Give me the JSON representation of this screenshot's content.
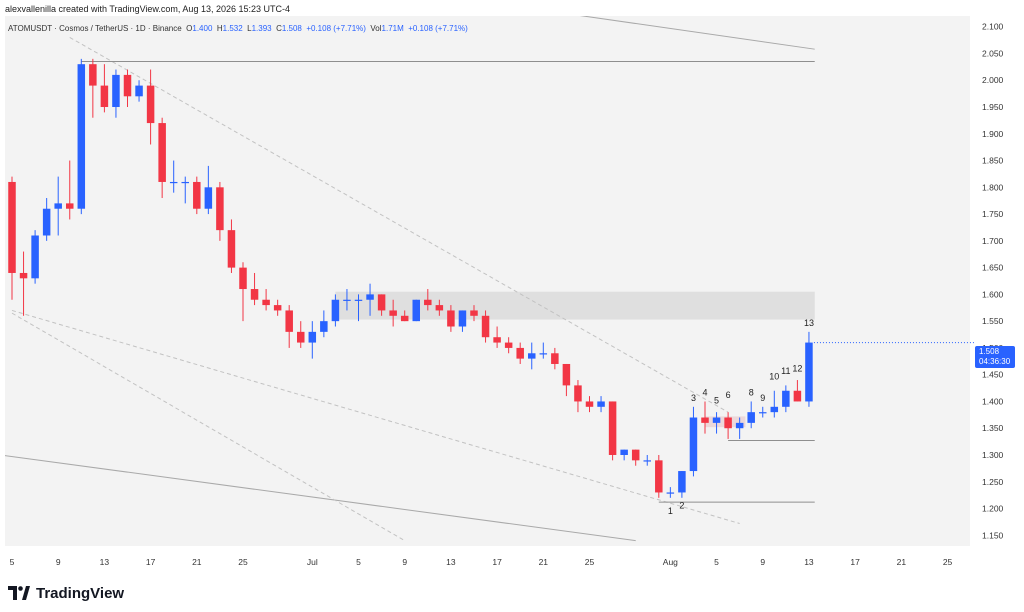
{
  "header": {
    "attribution": "alexvallenilla created with TradingView.com, Aug 13, 2026 15:23 UTC-4"
  },
  "symbol_bar": {
    "pair": "ATOMUSDT · Cosmos / TetherUS · 1D · Binance",
    "open_label": "O",
    "open": "1.400",
    "high_label": "H",
    "high": "1.532",
    "low_label": "L",
    "low": "1.393",
    "close_label": "C",
    "close": "1.508",
    "change": "+0.108 (+7.71%)",
    "vol_label": "Vol",
    "vol": "1.71M",
    "vol_change": "+0.108 (+7.71%)"
  },
  "price_tag": {
    "price": "1.508",
    "countdown": "04:36:30"
  },
  "footer": {
    "brand": "TradingView"
  },
  "colors": {
    "up": "#2962ff",
    "down": "#f23645",
    "grid_bg": "#f3f3f3",
    "zone": "#dadada",
    "trendline": "#b5b5b5"
  },
  "chart_data": {
    "type": "candlestick",
    "title": "",
    "xlabel": "",
    "ylabel": "",
    "ylim": [
      1.13,
      2.12
    ],
    "y_ticks": [
      "2.100",
      "2.050",
      "2.000",
      "1.950",
      "1.900",
      "1.850",
      "1.800",
      "1.750",
      "1.700",
      "1.650",
      "1.600",
      "1.550",
      "1.500",
      "1.450",
      "1.400",
      "1.350",
      "1.300",
      "1.250",
      "1.200",
      "1.150"
    ],
    "x_ticks": [
      {
        "label": "5",
        "day": 0
      },
      {
        "label": "9",
        "day": 4
      },
      {
        "label": "13",
        "day": 8
      },
      {
        "label": "17",
        "day": 12
      },
      {
        "label": "21",
        "day": 16
      },
      {
        "label": "25",
        "day": 20
      },
      {
        "label": "Jul",
        "day": 26
      },
      {
        "label": "5",
        "day": 30
      },
      {
        "label": "9",
        "day": 34
      },
      {
        "label": "13",
        "day": 38
      },
      {
        "label": "17",
        "day": 42
      },
      {
        "label": "21",
        "day": 46
      },
      {
        "label": "25",
        "day": 50
      },
      {
        "label": "Aug",
        "day": 57
      },
      {
        "label": "5",
        "day": 61
      },
      {
        "label": "9",
        "day": 65
      },
      {
        "label": "13",
        "day": 69
      },
      {
        "label": "17",
        "day": 73
      },
      {
        "label": "21",
        "day": 77
      },
      {
        "label": "25",
        "day": 81
      }
    ],
    "candles": [
      {
        "d": "Jun 5",
        "o": 1.81,
        "h": 1.82,
        "l": 1.59,
        "c": 1.64
      },
      {
        "d": "Jun 6",
        "o": 1.64,
        "h": 1.68,
        "l": 1.56,
        "c": 1.63
      },
      {
        "d": "Jun 7",
        "o": 1.63,
        "h": 1.72,
        "l": 1.62,
        "c": 1.71
      },
      {
        "d": "Jun 8",
        "o": 1.71,
        "h": 1.78,
        "l": 1.7,
        "c": 1.76
      },
      {
        "d": "Jun 9",
        "o": 1.76,
        "h": 1.82,
        "l": 1.71,
        "c": 1.77
      },
      {
        "d": "Jun 10",
        "o": 1.77,
        "h": 1.85,
        "l": 1.74,
        "c": 1.76
      },
      {
        "d": "Jun 11",
        "o": 1.76,
        "h": 2.04,
        "l": 1.75,
        "c": 2.03
      },
      {
        "d": "Jun 12",
        "o": 2.03,
        "h": 2.04,
        "l": 1.93,
        "c": 1.99
      },
      {
        "d": "Jun 13",
        "o": 1.99,
        "h": 2.03,
        "l": 1.94,
        "c": 1.95
      },
      {
        "d": "Jun 14",
        "o": 1.95,
        "h": 2.02,
        "l": 1.93,
        "c": 2.01
      },
      {
        "d": "Jun 15",
        "o": 2.01,
        "h": 2.02,
        "l": 1.95,
        "c": 1.97
      },
      {
        "d": "Jun 16",
        "o": 1.97,
        "h": 2.0,
        "l": 1.96,
        "c": 1.99
      },
      {
        "d": "Jun 17",
        "o": 1.99,
        "h": 2.02,
        "l": 1.88,
        "c": 1.92
      },
      {
        "d": "Jun 18",
        "o": 1.92,
        "h": 1.93,
        "l": 1.78,
        "c": 1.81
      },
      {
        "d": "Jun 19",
        "o": 1.81,
        "h": 1.85,
        "l": 1.79,
        "c": 1.81
      },
      {
        "d": "Jun 20",
        "o": 1.81,
        "h": 1.82,
        "l": 1.77,
        "c": 1.81
      },
      {
        "d": "Jun 21",
        "o": 1.81,
        "h": 1.82,
        "l": 1.75,
        "c": 1.76
      },
      {
        "d": "Jun 22",
        "o": 1.76,
        "h": 1.84,
        "l": 1.75,
        "c": 1.8
      },
      {
        "d": "Jun 23",
        "o": 1.8,
        "h": 1.81,
        "l": 1.7,
        "c": 1.72
      },
      {
        "d": "Jun 24",
        "o": 1.72,
        "h": 1.74,
        "l": 1.64,
        "c": 1.65
      },
      {
        "d": "Jun 25",
        "o": 1.65,
        "h": 1.66,
        "l": 1.55,
        "c": 1.61
      },
      {
        "d": "Jun 26",
        "o": 1.61,
        "h": 1.64,
        "l": 1.58,
        "c": 1.59
      },
      {
        "d": "Jun 27",
        "o": 1.59,
        "h": 1.61,
        "l": 1.57,
        "c": 1.58
      },
      {
        "d": "Jun 28",
        "o": 1.58,
        "h": 1.59,
        "l": 1.56,
        "c": 1.57
      },
      {
        "d": "Jun 29",
        "o": 1.57,
        "h": 1.58,
        "l": 1.5,
        "c": 1.53
      },
      {
        "d": "Jun 30",
        "o": 1.53,
        "h": 1.55,
        "l": 1.5,
        "c": 1.51
      },
      {
        "d": "Jul 1",
        "o": 1.51,
        "h": 1.55,
        "l": 1.48,
        "c": 1.53
      },
      {
        "d": "Jul 2",
        "o": 1.53,
        "h": 1.57,
        "l": 1.52,
        "c": 1.55
      },
      {
        "d": "Jul 3",
        "o": 1.55,
        "h": 1.6,
        "l": 1.54,
        "c": 1.59
      },
      {
        "d": "Jul 4",
        "o": 1.59,
        "h": 1.61,
        "l": 1.57,
        "c": 1.59
      },
      {
        "d": "Jul 5",
        "o": 1.59,
        "h": 1.6,
        "l": 1.55,
        "c": 1.59
      },
      {
        "d": "Jul 6",
        "o": 1.59,
        "h": 1.62,
        "l": 1.56,
        "c": 1.6
      },
      {
        "d": "Jul 7",
        "o": 1.6,
        "h": 1.6,
        "l": 1.56,
        "c": 1.57
      },
      {
        "d": "Jul 8",
        "o": 1.57,
        "h": 1.59,
        "l": 1.54,
        "c": 1.56
      },
      {
        "d": "Jul 9",
        "o": 1.56,
        "h": 1.57,
        "l": 1.55,
        "c": 1.55
      },
      {
        "d": "Jul 10",
        "o": 1.55,
        "h": 1.59,
        "l": 1.55,
        "c": 1.59
      },
      {
        "d": "Jul 11",
        "o": 1.59,
        "h": 1.61,
        "l": 1.57,
        "c": 1.58
      },
      {
        "d": "Jul 12",
        "o": 1.58,
        "h": 1.59,
        "l": 1.56,
        "c": 1.57
      },
      {
        "d": "Jul 13",
        "o": 1.57,
        "h": 1.58,
        "l": 1.53,
        "c": 1.54
      },
      {
        "d": "Jul 14",
        "o": 1.54,
        "h": 1.57,
        "l": 1.53,
        "c": 1.57
      },
      {
        "d": "Jul 15",
        "o": 1.57,
        "h": 1.58,
        "l": 1.55,
        "c": 1.56
      },
      {
        "d": "Jul 16",
        "o": 1.56,
        "h": 1.57,
        "l": 1.51,
        "c": 1.52
      },
      {
        "d": "Jul 17",
        "o": 1.52,
        "h": 1.54,
        "l": 1.5,
        "c": 1.51
      },
      {
        "d": "Jul 18",
        "o": 1.51,
        "h": 1.52,
        "l": 1.49,
        "c": 1.5
      },
      {
        "d": "Jul 19",
        "o": 1.5,
        "h": 1.51,
        "l": 1.47,
        "c": 1.48
      },
      {
        "d": "Jul 20",
        "o": 1.48,
        "h": 1.51,
        "l": 1.46,
        "c": 1.49
      },
      {
        "d": "Jul 21",
        "o": 1.49,
        "h": 1.51,
        "l": 1.48,
        "c": 1.49
      },
      {
        "d": "Jul 22",
        "o": 1.49,
        "h": 1.5,
        "l": 1.46,
        "c": 1.47
      },
      {
        "d": "Jul 23",
        "o": 1.47,
        "h": 1.47,
        "l": 1.41,
        "c": 1.43
      },
      {
        "d": "Jul 24",
        "o": 1.43,
        "h": 1.44,
        "l": 1.38,
        "c": 1.4
      },
      {
        "d": "Jul 25",
        "o": 1.4,
        "h": 1.41,
        "l": 1.38,
        "c": 1.39
      },
      {
        "d": "Jul 26",
        "o": 1.39,
        "h": 1.41,
        "l": 1.38,
        "c": 1.4
      },
      {
        "d": "Jul 27",
        "o": 1.4,
        "h": 1.4,
        "l": 1.29,
        "c": 1.3
      },
      {
        "d": "Jul 28",
        "o": 1.3,
        "h": 1.31,
        "l": 1.29,
        "c": 1.31
      },
      {
        "d": "Jul 29",
        "o": 1.31,
        "h": 1.31,
        "l": 1.28,
        "c": 1.29
      },
      {
        "d": "Jul 30",
        "o": 1.29,
        "h": 1.3,
        "l": 1.28,
        "c": 1.29
      },
      {
        "d": "Jul 31",
        "o": 1.29,
        "h": 1.3,
        "l": 1.22,
        "c": 1.23
      },
      {
        "d": "Aug 1",
        "o": 1.23,
        "h": 1.24,
        "l": 1.22,
        "c": 1.23
      },
      {
        "d": "Aug 2",
        "o": 1.23,
        "h": 1.27,
        "l": 1.22,
        "c": 1.27
      },
      {
        "d": "Aug 3",
        "o": 1.27,
        "h": 1.39,
        "l": 1.26,
        "c": 1.37
      },
      {
        "d": "Aug 4",
        "o": 1.37,
        "h": 1.4,
        "l": 1.34,
        "c": 1.36
      },
      {
        "d": "Aug 5",
        "o": 1.36,
        "h": 1.38,
        "l": 1.34,
        "c": 1.37
      },
      {
        "d": "Aug 6",
        "o": 1.37,
        "h": 1.38,
        "l": 1.33,
        "c": 1.35
      },
      {
        "d": "Aug 7",
        "o": 1.35,
        "h": 1.37,
        "l": 1.33,
        "c": 1.36
      },
      {
        "d": "Aug 8",
        "o": 1.36,
        "h": 1.4,
        "l": 1.35,
        "c": 1.38
      },
      {
        "d": "Aug 9",
        "o": 1.38,
        "h": 1.39,
        "l": 1.37,
        "c": 1.38
      },
      {
        "d": "Aug 10",
        "o": 1.38,
        "h": 1.42,
        "l": 1.37,
        "c": 1.39
      },
      {
        "d": "Aug 11",
        "o": 1.39,
        "h": 1.43,
        "l": 1.38,
        "c": 1.42
      },
      {
        "d": "Aug 12",
        "o": 1.42,
        "h": 1.44,
        "l": 1.4,
        "c": 1.4
      },
      {
        "d": "Aug 13",
        "o": 1.4,
        "h": 1.53,
        "l": 1.39,
        "c": 1.51
      }
    ],
    "wave_labels": [
      {
        "text": "1",
        "day": 57,
        "price": 1.212,
        "pos": "below"
      },
      {
        "text": "2",
        "day": 58,
        "price": 1.222,
        "pos": "below"
      },
      {
        "text": "3",
        "day": 59,
        "price": 1.39,
        "pos": "above"
      },
      {
        "text": "4",
        "day": 60,
        "price": 1.4,
        "pos": "above"
      },
      {
        "text": "5",
        "day": 61,
        "price": 1.385,
        "pos": "above"
      },
      {
        "text": "6",
        "day": 62,
        "price": 1.395,
        "pos": "above"
      },
      {
        "text": "8",
        "day": 64,
        "price": 1.4,
        "pos": "above"
      },
      {
        "text": "9",
        "day": 65,
        "price": 1.39,
        "pos": "above"
      },
      {
        "text": "10",
        "day": 66,
        "price": 1.43,
        "pos": "above"
      },
      {
        "text": "11",
        "day": 67,
        "price": 1.44,
        "pos": "above"
      },
      {
        "text": "12",
        "day": 68,
        "price": 1.445,
        "pos": "above"
      },
      {
        "text": "13",
        "day": 69,
        "price": 1.53,
        "pos": "above"
      }
    ],
    "resistance_zone": {
      "from_day": 28,
      "to_day": 69.5,
      "top": 1.605,
      "bottom": 1.553
    },
    "horizontal_lines": [
      {
        "price": 2.035,
        "from_day": 6,
        "to_day": 69.5
      },
      {
        "price": 1.327,
        "from_day": 62,
        "to_day": 69.5
      },
      {
        "price": 1.212,
        "from_day": 56,
        "to_day": 69.5
      }
    ],
    "small_box": {
      "from_day": 60,
      "to_day": 63.5,
      "top": 1.372,
      "bottom": 1.352
    },
    "trendlines": [
      {
        "style": "solid",
        "p1": {
          "day": 43,
          "price": 2.14
        },
        "p2": {
          "day": 69.5,
          "price": 2.058
        }
      },
      {
        "style": "solid",
        "p1": {
          "day": -1,
          "price": 1.3
        },
        "p2": {
          "day": 54,
          "price": 1.14
        }
      },
      {
        "style": "dashed",
        "p1": {
          "day": 5,
          "price": 2.08
        },
        "p2": {
          "day": 62,
          "price": 1.38
        }
      },
      {
        "style": "dashed",
        "p1": {
          "day": 0,
          "price": 1.565
        },
        "p2": {
          "day": 34,
          "price": 1.14
        }
      },
      {
        "style": "dashed",
        "p1": {
          "day": 0,
          "price": 1.57
        },
        "p2": {
          "day": 63,
          "price": 1.172
        }
      }
    ]
  }
}
